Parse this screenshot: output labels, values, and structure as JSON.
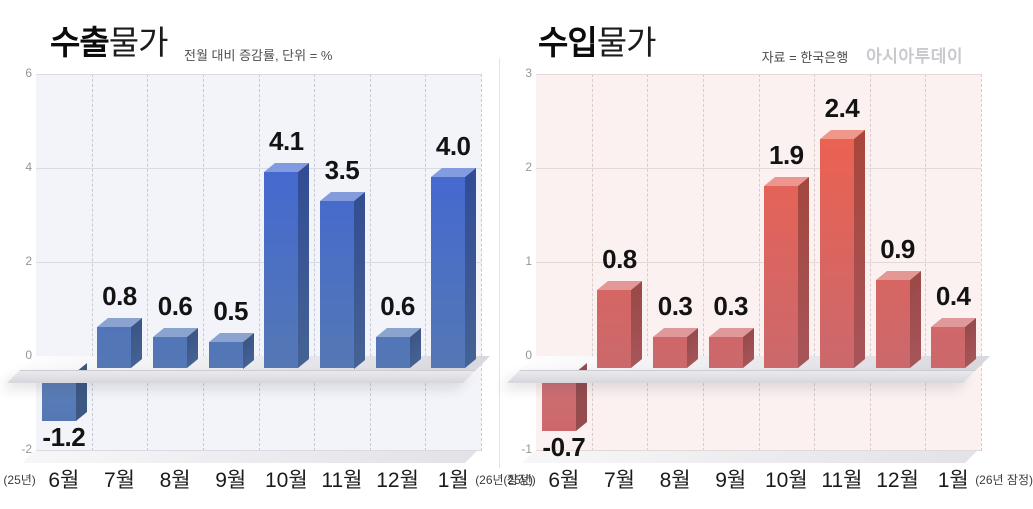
{
  "page": {
    "background": "#ffffff"
  },
  "chart_data": [
    {
      "type": "bar",
      "title_strong": "수출",
      "title_regular": "물가",
      "subtitle": "전월 대비 증감률, 단위 = %",
      "categories": [
        "6월",
        "7월",
        "8월",
        "9월",
        "10월",
        "11월",
        "12월",
        "1월"
      ],
      "first_category_prefix": "(25년)",
      "last_category_suffix": "(26년 잠정)",
      "values": [
        -1.2,
        0.8,
        0.6,
        0.5,
        4.1,
        3.5,
        0.6,
        4.0
      ],
      "value_labels": [
        "-1.2",
        "0.8",
        "0.6",
        "0.5",
        "4.1",
        "3.5",
        "0.6",
        "4.0"
      ],
      "ylim": [
        -2,
        6
      ],
      "yticks": [
        6,
        4,
        2,
        0,
        -2
      ],
      "grid": {
        "horizontal": "solid",
        "vertical": "dashed"
      },
      "colors": {
        "bar_vivid": "#3E62DC",
        "bar_muted": "#5478B4",
        "plot_bg": "#F3F4F9",
        "grid_line": "#D9DBE2",
        "grid_dash": "#C7CAD4"
      }
    },
    {
      "type": "bar",
      "title_strong": "수입",
      "title_regular": "물가",
      "source": "자료 = 한국은행",
      "logo": "아시아투데이",
      "categories": [
        "6월",
        "7월",
        "8월",
        "9월",
        "10월",
        "11월",
        "12월",
        "1월"
      ],
      "first_category_prefix": "(25년)",
      "last_category_suffix": "(26년 잠정)",
      "values": [
        -0.7,
        0.8,
        0.3,
        0.3,
        1.9,
        2.4,
        0.9,
        0.4
      ],
      "value_labels": [
        "-0.7",
        "0.8",
        "0.3",
        "0.3",
        "1.9",
        "2.4",
        "0.9",
        "0.4"
      ],
      "ylim": [
        -1,
        3
      ],
      "yticks": [
        3,
        2,
        1,
        0,
        -1
      ],
      "grid": {
        "horizontal": "solid",
        "vertical": "dashed"
      },
      "colors": {
        "bar_vivid": "#F2604C",
        "bar_muted": "#CB686C",
        "plot_bg": "#FBF1F0",
        "grid_line": "#E3D9D9",
        "grid_dash": "#D8CBCA"
      }
    }
  ]
}
